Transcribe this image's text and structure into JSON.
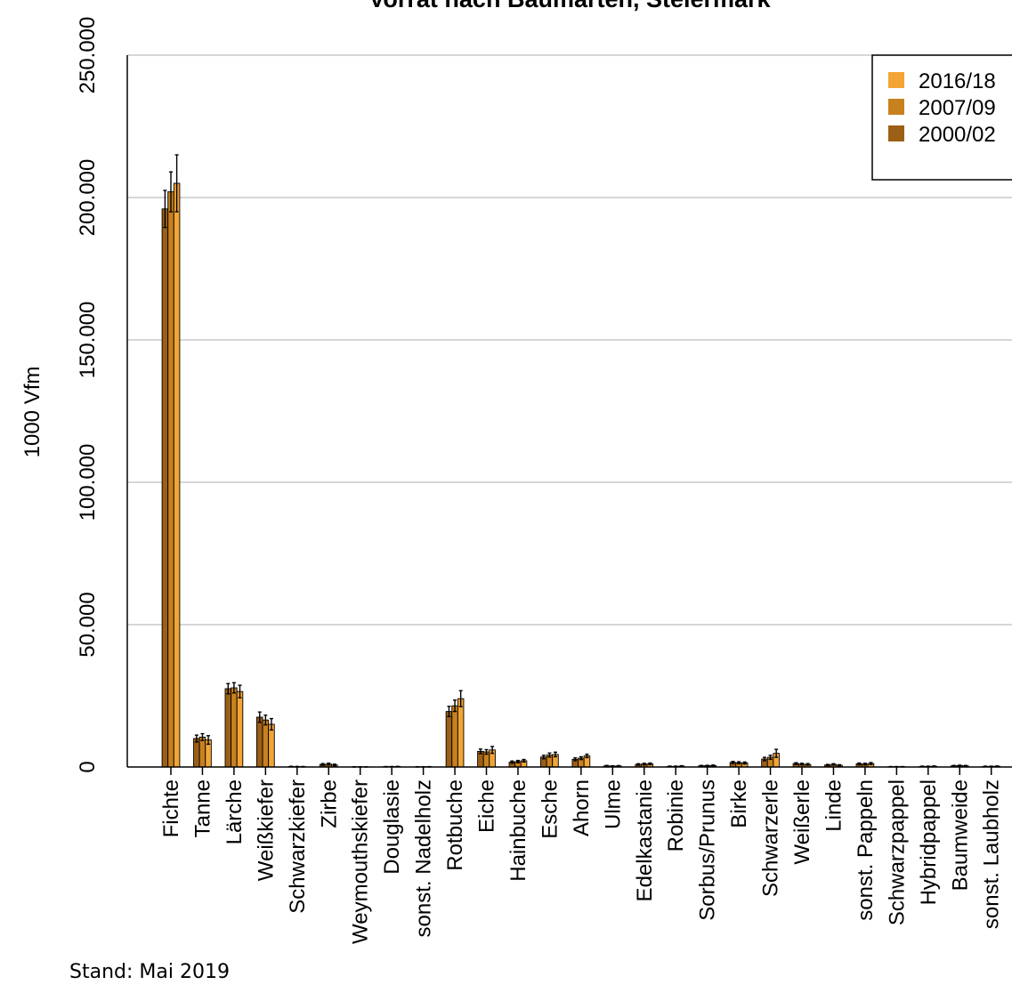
{
  "chart_data": {
    "type": "bar",
    "title": "Vorrat nach Baumarten, Steiermark",
    "ylabel": "1000 Vfm",
    "xlabel": "",
    "ylim": [
      0,
      250000
    ],
    "yticks": [
      0,
      50000,
      100000,
      150000,
      200000,
      250000
    ],
    "ytick_labels": [
      "0",
      "50.000",
      "100.000",
      "150.000",
      "200.000",
      "250.000"
    ],
    "grid": "horizontal",
    "legend_position": "top-right",
    "categories": [
      "Fichte",
      "Tanne",
      "Lärche",
      "Weißkiefer",
      "Schwarzkiefer",
      "Zirbe",
      "Weymouthskiefer",
      "Douglasie",
      "sonst. Nadelholz",
      "Rotbuche",
      "Eiche",
      "Hainbuche",
      "Esche",
      "Ahorn",
      "Ulme",
      "Edelkastanie",
      "Robinie",
      "Sorbus/Prunus",
      "Birke",
      "Schwarzerle",
      "Weißerle",
      "Linde",
      "sonst. Pappeln",
      "Schwarzpappel",
      "Hybridpappel",
      "Baumweide",
      "sonst. Laubholz"
    ],
    "series": [
      {
        "name": "2000/02",
        "color": "#9c5f16",
        "values": [
          196000,
          10000,
          27500,
          17500,
          150,
          900,
          50,
          100,
          60,
          19500,
          5500,
          1700,
          3500,
          2700,
          400,
          900,
          200,
          400,
          1600,
          2800,
          1200,
          700,
          1100,
          100,
          200,
          400,
          200
        ],
        "errors": [
          6500,
          1200,
          1800,
          1800,
          100,
          300,
          50,
          60,
          40,
          1800,
          800,
          400,
          600,
          500,
          150,
          250,
          120,
          150,
          350,
          600,
          300,
          200,
          300,
          60,
          100,
          150,
          100
        ]
      },
      {
        "name": "2007/09",
        "color": "#c8811f",
        "values": [
          202000,
          10500,
          27800,
          16500,
          120,
          1000,
          40,
          120,
          70,
          21500,
          5300,
          1900,
          4200,
          3100,
          300,
          1000,
          200,
          450,
          1500,
          3400,
          1000,
          900,
          1000,
          100,
          200,
          500,
          200
        ],
        "errors": [
          7000,
          1200,
          1800,
          1700,
          90,
          350,
          40,
          60,
          40,
          2000,
          800,
          400,
          700,
          500,
          120,
          300,
          120,
          150,
          350,
          700,
          300,
          250,
          300,
          60,
          100,
          150,
          100
        ]
      },
      {
        "name": "2016/18",
        "color": "#f2a535",
        "values": [
          205000,
          9500,
          26500,
          15000,
          100,
          700,
          30,
          150,
          80,
          24000,
          6000,
          2200,
          4400,
          3900,
          350,
          1100,
          300,
          500,
          1400,
          4800,
          900,
          600,
          1200,
          90,
          250,
          400,
          250
        ],
        "errors": [
          10000,
          1500,
          2200,
          2000,
          80,
          300,
          30,
          80,
          50,
          2800,
          1200,
          450,
          800,
          600,
          150,
          300,
          150,
          200,
          350,
          1400,
          300,
          200,
          350,
          60,
          120,
          150,
          120
        ]
      }
    ]
  },
  "footnote": "Stand: Mai 2019"
}
